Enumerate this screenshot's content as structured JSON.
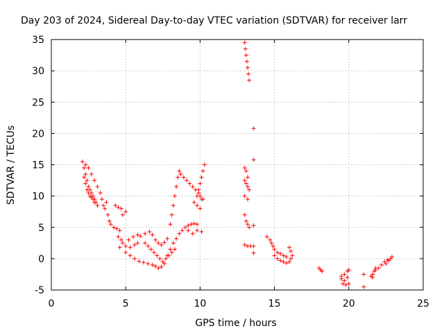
{
  "chart_data": {
    "type": "scatter",
    "title": "Day 203 of 2024, Sidereal Day-to-day VTEC variation (SDTVAR) for receiver larr",
    "xlabel": "GPS time / hours",
    "ylabel": "SDTVAR / TECUs",
    "xlim": [
      0,
      25
    ],
    "ylim": [
      -5,
      35
    ],
    "xticks": [
      "0",
      "5",
      "10",
      "15",
      "20",
      "25"
    ],
    "yticks": [
      "-5",
      "0",
      "5",
      "10",
      "15",
      "20",
      "25",
      "30",
      "35"
    ],
    "grid": true,
    "marker": "+",
    "color": "#ff0000",
    "series": [
      {
        "points": [
          [
            2.1,
            15.5
          ],
          [
            2.2,
            14.5
          ],
          [
            2.3,
            13.5
          ],
          [
            2.4,
            12.5
          ],
          [
            2.5,
            11.5
          ],
          [
            2.6,
            11.0
          ],
          [
            2.7,
            10.5
          ],
          [
            2.8,
            10.0
          ],
          [
            2.9,
            9.5
          ],
          [
            3.0,
            9.0
          ],
          [
            3.1,
            8.5
          ],
          [
            2.2,
            13.0
          ],
          [
            2.3,
            12.0
          ],
          [
            2.4,
            11.0
          ],
          [
            2.5,
            10.5
          ],
          [
            2.6,
            10.0
          ],
          [
            2.7,
            9.8
          ],
          [
            2.8,
            9.5
          ],
          [
            2.9,
            9.0
          ],
          [
            2.3,
            15.0
          ],
          [
            2.5,
            14.5
          ],
          [
            2.7,
            13.5
          ],
          [
            2.9,
            12.5
          ],
          [
            3.1,
            11.5
          ],
          [
            3.3,
            10.5
          ],
          [
            3.4,
            9.5
          ],
          [
            3.5,
            8.5
          ],
          [
            3.6,
            8.0
          ],
          [
            3.7,
            9.0
          ],
          [
            3.8,
            7.0
          ],
          [
            3.9,
            6.0
          ],
          [
            4.0,
            5.5
          ],
          [
            4.2,
            5.0
          ],
          [
            4.4,
            4.8
          ],
          [
            4.6,
            4.5
          ],
          [
            4.3,
            8.5
          ],
          [
            4.5,
            8.2
          ],
          [
            4.7,
            8.0
          ],
          [
            5.0,
            7.5
          ],
          [
            4.8,
            7.0
          ],
          [
            4.5,
            3.5
          ],
          [
            4.7,
            3.0
          ],
          [
            4.8,
            2.5
          ],
          [
            4.6,
            1.8
          ],
          [
            5.0,
            2.0
          ],
          [
            5.3,
            1.8
          ],
          [
            5.6,
            2.2
          ],
          [
            5.8,
            2.5
          ],
          [
            5.2,
            3.0
          ],
          [
            5.5,
            3.5
          ],
          [
            5.8,
            3.8
          ],
          [
            6.0,
            3.6
          ],
          [
            6.3,
            4.0
          ],
          [
            6.6,
            4.3
          ],
          [
            6.8,
            3.8
          ],
          [
            7.0,
            3.0
          ],
          [
            7.2,
            2.5
          ],
          [
            7.4,
            2.2
          ],
          [
            7.6,
            2.6
          ],
          [
            7.8,
            3.2
          ],
          [
            5.0,
            1.0
          ],
          [
            5.3,
            0.5
          ],
          [
            5.6,
            0.0
          ],
          [
            5.9,
            -0.4
          ],
          [
            6.2,
            -0.6
          ],
          [
            6.5,
            -0.8
          ],
          [
            6.8,
            -1.0
          ],
          [
            7.0,
            -1.2
          ],
          [
            7.2,
            -1.5
          ],
          [
            7.4,
            -1.3
          ],
          [
            7.6,
            -0.8
          ],
          [
            6.3,
            2.5
          ],
          [
            6.5,
            2.0
          ],
          [
            6.7,
            1.5
          ],
          [
            6.9,
            1.0
          ],
          [
            7.1,
            0.5
          ],
          [
            7.3,
            0.0
          ],
          [
            7.5,
            -0.5
          ],
          [
            7.7,
            0.0
          ],
          [
            7.9,
            0.5
          ],
          [
            8.1,
            1.0
          ],
          [
            8.3,
            1.5
          ],
          [
            7.8,
            0.5
          ],
          [
            8.0,
            1.5
          ],
          [
            8.2,
            2.5
          ],
          [
            8.4,
            3.2
          ],
          [
            8.6,
            4.0
          ],
          [
            8.8,
            4.5
          ],
          [
            9.0,
            5.0
          ],
          [
            9.2,
            5.3
          ],
          [
            9.4,
            5.5
          ],
          [
            9.6,
            5.6
          ],
          [
            9.8,
            5.5
          ],
          [
            8.0,
            5.5
          ],
          [
            8.1,
            7.0
          ],
          [
            8.2,
            8.5
          ],
          [
            8.3,
            10.0
          ],
          [
            8.4,
            11.5
          ],
          [
            8.5,
            13.0
          ],
          [
            8.6,
            14.0
          ],
          [
            8.7,
            13.5
          ],
          [
            8.9,
            13.0
          ],
          [
            9.1,
            12.5
          ],
          [
            9.3,
            12.0
          ],
          [
            9.5,
            11.5
          ],
          [
            9.7,
            11.0
          ],
          [
            9.9,
            10.5
          ],
          [
            10.0,
            10.0
          ],
          [
            10.1,
            9.5
          ],
          [
            9.8,
            10.0
          ],
          [
            9.9,
            11.0
          ],
          [
            10.0,
            12.0
          ],
          [
            10.1,
            13.0
          ],
          [
            10.2,
            14.0
          ],
          [
            10.3,
            15.0
          ],
          [
            9.6,
            9.0
          ],
          [
            9.8,
            8.5
          ],
          [
            10.0,
            8.0
          ],
          [
            10.2,
            9.5
          ],
          [
            9.2,
            4.5
          ],
          [
            9.5,
            4.0
          ],
          [
            9.8,
            4.5
          ],
          [
            10.1,
            4.3
          ],
          [
            13.0,
            34.5
          ],
          [
            13.05,
            33.5
          ],
          [
            13.1,
            32.5
          ],
          [
            13.15,
            31.5
          ],
          [
            13.2,
            30.5
          ],
          [
            13.25,
            29.5
          ],
          [
            13.3,
            28.5
          ],
          [
            13.6,
            20.8
          ],
          [
            13.0,
            14.5
          ],
          [
            13.1,
            14.0
          ],
          [
            13.2,
            13.0
          ],
          [
            13.0,
            12.5
          ],
          [
            13.1,
            12.0
          ],
          [
            13.2,
            11.5
          ],
          [
            13.3,
            11.0
          ],
          [
            13.0,
            10.0
          ],
          [
            13.2,
            9.5
          ],
          [
            13.6,
            15.8
          ],
          [
            13.0,
            7.0
          ],
          [
            13.1,
            6.0
          ],
          [
            13.2,
            5.5
          ],
          [
            13.3,
            5.0
          ],
          [
            13.6,
            5.3
          ],
          [
            13.0,
            2.2
          ],
          [
            13.2,
            2.0
          ],
          [
            13.4,
            2.0
          ],
          [
            13.6,
            2.0
          ],
          [
            13.6,
            0.9
          ],
          [
            14.5,
            3.5
          ],
          [
            14.7,
            3.0
          ],
          [
            14.8,
            2.5
          ],
          [
            14.9,
            2.0
          ],
          [
            15.0,
            1.5
          ],
          [
            15.2,
            1.0
          ],
          [
            15.4,
            0.8
          ],
          [
            15.6,
            0.5
          ],
          [
            15.8,
            0.3
          ],
          [
            15.0,
            0.5
          ],
          [
            15.2,
            0.0
          ],
          [
            15.4,
            -0.3
          ],
          [
            15.6,
            -0.5
          ],
          [
            15.8,
            -0.7
          ],
          [
            16.0,
            -0.5
          ],
          [
            16.0,
            1.8
          ],
          [
            16.1,
            1.2
          ],
          [
            16.2,
            0.5
          ],
          [
            16.1,
            0.0
          ],
          [
            18.0,
            -1.5
          ],
          [
            18.1,
            -1.8
          ],
          [
            18.2,
            -2.0
          ],
          [
            19.5,
            -2.8
          ],
          [
            19.7,
            -2.5
          ],
          [
            19.9,
            -2.0
          ],
          [
            20.0,
            -1.8
          ],
          [
            19.5,
            -3.2
          ],
          [
            19.7,
            -3.5
          ],
          [
            19.9,
            -3.0
          ],
          [
            19.6,
            -4.0
          ],
          [
            19.8,
            -4.2
          ],
          [
            20.0,
            -4.0
          ],
          [
            21.0,
            -2.5
          ],
          [
            21.0,
            -4.5
          ],
          [
            21.5,
            -2.8
          ],
          [
            21.6,
            -2.5
          ],
          [
            21.7,
            -2.0
          ],
          [
            21.8,
            -1.5
          ],
          [
            21.6,
            -3.0
          ],
          [
            21.8,
            -1.8
          ],
          [
            22.0,
            -1.5
          ],
          [
            22.2,
            -1.0
          ],
          [
            22.4,
            -0.5
          ],
          [
            22.6,
            -0.2
          ],
          [
            22.8,
            0.0
          ],
          [
            22.9,
            0.3
          ],
          [
            22.7,
            -0.3
          ],
          [
            22.5,
            -0.8
          ]
        ]
      }
    ]
  }
}
